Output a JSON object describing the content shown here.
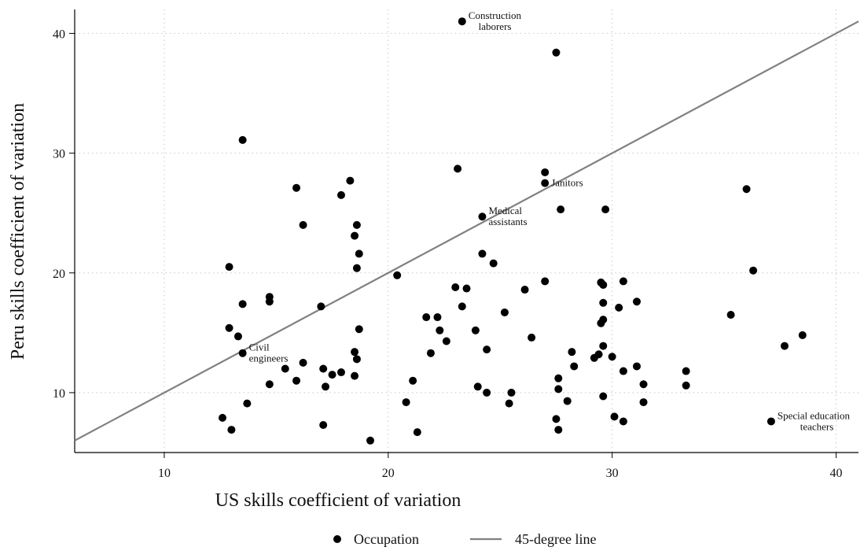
{
  "chart_data": {
    "type": "scatter",
    "xlabel": "US skills coefficient of variation",
    "ylabel": "Peru skills coefficient of variation",
    "xlim": [
      6,
      41
    ],
    "ylim": [
      5,
      42
    ],
    "xticks": [
      10,
      20,
      30,
      40
    ],
    "yticks": [
      10,
      20,
      30,
      40
    ],
    "grid": "dotted",
    "legend_placement": "bottom-center",
    "colors": {
      "points": "#000000",
      "line": "#808080",
      "grid": "#c8c8c8"
    },
    "series": [
      {
        "name": "Occupation",
        "type": "scatter",
        "points": [
          {
            "x": 23.3,
            "y": 41.0
          },
          {
            "x": 27.5,
            "y": 38.4
          },
          {
            "x": 13.5,
            "y": 31.1
          },
          {
            "x": 23.1,
            "y": 28.7
          },
          {
            "x": 27.0,
            "y": 28.4
          },
          {
            "x": 27.0,
            "y": 27.5
          },
          {
            "x": 18.3,
            "y": 27.7
          },
          {
            "x": 15.9,
            "y": 27.1
          },
          {
            "x": 17.9,
            "y": 26.5
          },
          {
            "x": 36.0,
            "y": 27.0
          },
          {
            "x": 27.7,
            "y": 25.3
          },
          {
            "x": 29.7,
            "y": 25.3
          },
          {
            "x": 24.2,
            "y": 24.7
          },
          {
            "x": 16.2,
            "y": 24.0
          },
          {
            "x": 18.6,
            "y": 24.0
          },
          {
            "x": 18.5,
            "y": 23.1
          },
          {
            "x": 18.7,
            "y": 21.6
          },
          {
            "x": 24.2,
            "y": 21.6
          },
          {
            "x": 24.7,
            "y": 20.8
          },
          {
            "x": 12.9,
            "y": 20.5
          },
          {
            "x": 18.6,
            "y": 20.4
          },
          {
            "x": 36.3,
            "y": 20.2
          },
          {
            "x": 20.4,
            "y": 19.8
          },
          {
            "x": 27.0,
            "y": 19.3
          },
          {
            "x": 29.5,
            "y": 19.2
          },
          {
            "x": 29.6,
            "y": 19.0
          },
          {
            "x": 30.5,
            "y": 19.3
          },
          {
            "x": 23.0,
            "y": 18.8
          },
          {
            "x": 23.5,
            "y": 18.7
          },
          {
            "x": 26.1,
            "y": 18.6
          },
          {
            "x": 14.7,
            "y": 18.0
          },
          {
            "x": 14.7,
            "y": 17.6
          },
          {
            "x": 13.5,
            "y": 17.4
          },
          {
            "x": 17.0,
            "y": 17.2
          },
          {
            "x": 23.3,
            "y": 17.2
          },
          {
            "x": 29.6,
            "y": 17.5
          },
          {
            "x": 31.1,
            "y": 17.6
          },
          {
            "x": 30.3,
            "y": 17.1
          },
          {
            "x": 25.2,
            "y": 16.7
          },
          {
            "x": 35.3,
            "y": 16.5
          },
          {
            "x": 21.7,
            "y": 16.3
          },
          {
            "x": 22.2,
            "y": 16.3
          },
          {
            "x": 29.6,
            "y": 16.1
          },
          {
            "x": 29.5,
            "y": 15.8
          },
          {
            "x": 12.9,
            "y": 15.4
          },
          {
            "x": 18.7,
            "y": 15.3
          },
          {
            "x": 22.3,
            "y": 15.2
          },
          {
            "x": 23.9,
            "y": 15.2
          },
          {
            "x": 13.3,
            "y": 14.7
          },
          {
            "x": 38.5,
            "y": 14.8
          },
          {
            "x": 26.4,
            "y": 14.6
          },
          {
            "x": 22.6,
            "y": 14.3
          },
          {
            "x": 29.6,
            "y": 13.9
          },
          {
            "x": 37.7,
            "y": 13.9
          },
          {
            "x": 24.4,
            "y": 13.6
          },
          {
            "x": 18.5,
            "y": 13.4
          },
          {
            "x": 21.9,
            "y": 13.3
          },
          {
            "x": 28.2,
            "y": 13.4
          },
          {
            "x": 29.4,
            "y": 13.2
          },
          {
            "x": 29.2,
            "y": 12.9
          },
          {
            "x": 30.0,
            "y": 13.0
          },
          {
            "x": 13.5,
            "y": 13.3
          },
          {
            "x": 18.6,
            "y": 12.8
          },
          {
            "x": 16.2,
            "y": 12.5
          },
          {
            "x": 31.1,
            "y": 12.2
          },
          {
            "x": 28.3,
            "y": 12.2
          },
          {
            "x": 15.4,
            "y": 12.0
          },
          {
            "x": 17.1,
            "y": 12.0
          },
          {
            "x": 17.9,
            "y": 11.7
          },
          {
            "x": 17.5,
            "y": 11.5
          },
          {
            "x": 18.5,
            "y": 11.4
          },
          {
            "x": 30.5,
            "y": 11.8
          },
          {
            "x": 33.3,
            "y": 11.8
          },
          {
            "x": 27.6,
            "y": 11.2
          },
          {
            "x": 15.9,
            "y": 11.0
          },
          {
            "x": 21.1,
            "y": 11.0
          },
          {
            "x": 14.7,
            "y": 10.7
          },
          {
            "x": 17.2,
            "y": 10.5
          },
          {
            "x": 24.0,
            "y": 10.5
          },
          {
            "x": 27.6,
            "y": 10.3
          },
          {
            "x": 31.4,
            "y": 10.7
          },
          {
            "x": 33.3,
            "y": 10.6
          },
          {
            "x": 24.4,
            "y": 10.0
          },
          {
            "x": 25.5,
            "y": 10.0
          },
          {
            "x": 29.6,
            "y": 9.7
          },
          {
            "x": 28.0,
            "y": 9.3
          },
          {
            "x": 13.7,
            "y": 9.1
          },
          {
            "x": 20.8,
            "y": 9.2
          },
          {
            "x": 25.4,
            "y": 9.1
          },
          {
            "x": 31.4,
            "y": 9.2
          },
          {
            "x": 12.6,
            "y": 7.9
          },
          {
            "x": 27.5,
            "y": 7.8
          },
          {
            "x": 30.1,
            "y": 8.0
          },
          {
            "x": 37.1,
            "y": 7.6
          },
          {
            "x": 17.1,
            "y": 7.3
          },
          {
            "x": 30.5,
            "y": 7.6
          },
          {
            "x": 13.0,
            "y": 6.9
          },
          {
            "x": 27.6,
            "y": 6.9
          },
          {
            "x": 21.3,
            "y": 6.7
          },
          {
            "x": 19.2,
            "y": 6.0
          }
        ]
      },
      {
        "name": "45-degree line",
        "type": "line",
        "points": [
          {
            "x": 6,
            "y": 6
          },
          {
            "x": 41,
            "y": 41
          }
        ]
      }
    ],
    "annotations": [
      {
        "lines": [
          "Construction",
          "laborers"
        ],
        "x": 23.3,
        "y": 41.0
      },
      {
        "lines": [
          "Janitors"
        ],
        "x": 27.0,
        "y": 27.5
      },
      {
        "lines": [
          "Medical",
          "assistants"
        ],
        "x": 24.2,
        "y": 24.7
      },
      {
        "lines": [
          "Civil",
          "engineers"
        ],
        "x": 13.5,
        "y": 13.3
      },
      {
        "lines": [
          "Special education",
          "teachers"
        ],
        "x": 37.1,
        "y": 7.6
      }
    ]
  }
}
